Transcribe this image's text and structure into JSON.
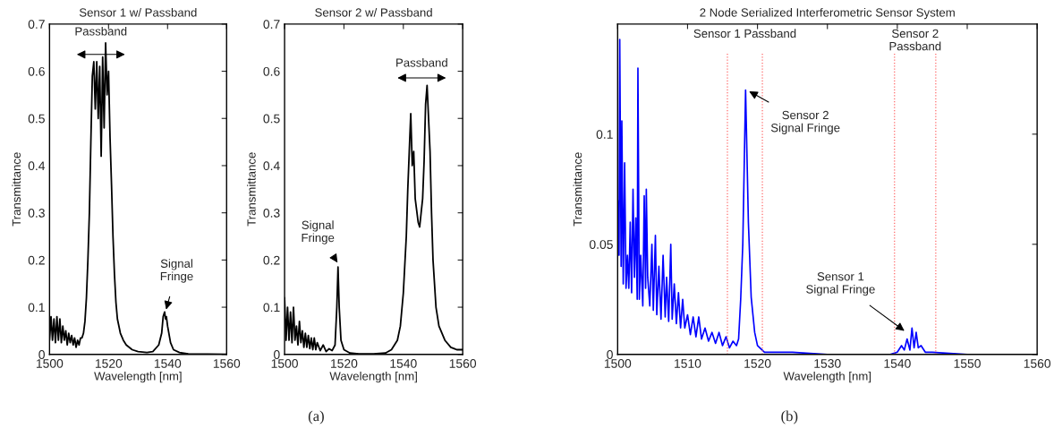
{
  "chart_data": [
    {
      "type": "line",
      "title": "Sensor 1 w/ Passband",
      "xlabel": "Wavelength [nm]",
      "ylabel": "Transmittance",
      "xlim": [
        1500,
        1560
      ],
      "xticks": [
        1500,
        1520,
        1540,
        1560
      ],
      "ylim": [
        0,
        0.7
      ],
      "yticks": [
        0,
        0.1,
        0.2,
        0.3,
        0.4,
        0.5,
        0.6,
        0.7
      ],
      "grid": false,
      "legend": false,
      "series": [
        {
          "color": "#000000",
          "x": [
            1500,
            1500.5,
            1501,
            1501.5,
            1502,
            1502.5,
            1503,
            1503.5,
            1504,
            1504.5,
            1505,
            1505.5,
            1506,
            1506.5,
            1507,
            1507.5,
            1508,
            1508.5,
            1509,
            1509.5,
            1510,
            1510.5,
            1511,
            1511.5,
            1512,
            1512.5,
            1513,
            1513.5,
            1514,
            1514.5,
            1515,
            1515.5,
            1516,
            1516.5,
            1517,
            1517.5,
            1518,
            1518.5,
            1519,
            1519.5,
            1520,
            1520.5,
            1521,
            1521.5,
            1522,
            1522.5,
            1523,
            1524,
            1525,
            1526,
            1528,
            1530,
            1533,
            1535,
            1537,
            1538,
            1538.5,
            1539,
            1539.3,
            1539.6,
            1540,
            1541,
            1542,
            1544,
            1547,
            1560
          ],
          "values": [
            0.03,
            0.08,
            0.03,
            0.075,
            0.025,
            0.08,
            0.03,
            0.075,
            0.025,
            0.06,
            0.03,
            0.05,
            0.02,
            0.045,
            0.025,
            0.04,
            0.02,
            0.035,
            0.015,
            0.03,
            0.02,
            0.035,
            0.035,
            0.045,
            0.07,
            0.12,
            0.2,
            0.3,
            0.45,
            0.59,
            0.62,
            0.52,
            0.62,
            0.5,
            0.61,
            0.42,
            0.63,
            0.48,
            0.66,
            0.55,
            0.6,
            0.46,
            0.36,
            0.25,
            0.17,
            0.11,
            0.075,
            0.045,
            0.03,
            0.02,
            0.01,
            0.006,
            0.004,
            0.006,
            0.02,
            0.045,
            0.08,
            0.09,
            0.075,
            0.08,
            0.06,
            0.025,
            0.01,
            0.004,
            0.001,
            0
          ]
        }
      ],
      "annotations": [
        "Passband",
        {
          "text": "Signal\nFringe",
          "x": 1539.3,
          "y": 0.09
        }
      ]
    },
    {
      "type": "line",
      "title": "Sensor 2 w/ Passband",
      "xlabel": "Wavelength [nm]",
      "ylabel": "Transmittance",
      "xlim": [
        1500,
        1560
      ],
      "xticks": [
        1500,
        1520,
        1540,
        1560
      ],
      "ylim": [
        0,
        0.7
      ],
      "yticks": [
        0,
        0.1,
        0.2,
        0.3,
        0.4,
        0.5,
        0.6,
        0.7
      ],
      "grid": false,
      "legend": false,
      "series": [
        {
          "color": "#000000",
          "x": [
            1500,
            1500.5,
            1501,
            1501.5,
            1502,
            1502.5,
            1503,
            1503.5,
            1504,
            1504.5,
            1505,
            1505.5,
            1506,
            1506.5,
            1507,
            1507.5,
            1508,
            1508.5,
            1509,
            1509.5,
            1510,
            1510.5,
            1511,
            1512,
            1513,
            1514,
            1515,
            1516,
            1517,
            1517.6,
            1518,
            1518.4,
            1519,
            1520,
            1522,
            1525,
            1530,
            1534,
            1536,
            1538,
            1539,
            1540,
            1541,
            1541.5,
            1542,
            1542.5,
            1543,
            1543.5,
            1544,
            1545,
            1545.5,
            1546,
            1546.5,
            1547,
            1547.5,
            1548,
            1548.5,
            1549,
            1549.5,
            1550,
            1551,
            1552,
            1554,
            1556,
            1558,
            1560
          ],
          "values": [
            0.12,
            0.03,
            0.1,
            0.03,
            0.09,
            0.025,
            0.1,
            0.03,
            0.06,
            0.02,
            0.07,
            0.025,
            0.05,
            0.015,
            0.045,
            0.015,
            0.04,
            0.012,
            0.035,
            0.01,
            0.035,
            0.01,
            0.025,
            0.008,
            0.02,
            0.006,
            0.012,
            0.008,
            0.02,
            0.1,
            0.185,
            0.1,
            0.03,
            0.01,
            0.003,
            0.001,
            0.001,
            0.003,
            0.01,
            0.03,
            0.06,
            0.13,
            0.25,
            0.35,
            0.43,
            0.51,
            0.4,
            0.43,
            0.33,
            0.28,
            0.27,
            0.3,
            0.33,
            0.41,
            0.53,
            0.57,
            0.5,
            0.43,
            0.3,
            0.2,
            0.1,
            0.06,
            0.03,
            0.015,
            0.01,
            0.01
          ]
        }
      ],
      "annotations": [
        "Passband",
        {
          "text": "Signal\nFringe",
          "x": 1518.3,
          "y": 0.19
        },
        "(a)"
      ]
    },
    {
      "type": "line",
      "title": "2 Node Serialized Interferometric Sensor System",
      "xlabel": "Wavelength [nm]",
      "ylabel": "Transmittance",
      "xlim": [
        1500,
        1560
      ],
      "xticks": [
        1500,
        1510,
        1520,
        1530,
        1540,
        1550,
        1560
      ],
      "ylim": [
        0,
        0.15
      ],
      "yticks": [
        0,
        0.05,
        0.1
      ],
      "grid": false,
      "legend": false,
      "series": [
        {
          "color": "#0000ff",
          "x": [
            1500,
            1500.2,
            1500.3,
            1500.5,
            1500.6,
            1500.8,
            1501,
            1501.2,
            1501.4,
            1501.6,
            1501.8,
            1502,
            1502.2,
            1502.4,
            1502.6,
            1502.8,
            1502.9,
            1503.1,
            1503.3,
            1503.6,
            1503.8,
            1504,
            1504.1,
            1504.3,
            1504.6,
            1504.9,
            1505.1,
            1505.4,
            1505.6,
            1505.9,
            1506.2,
            1506.5,
            1506.8,
            1507,
            1507.3,
            1507.6,
            1507.8,
            1508.1,
            1508.4,
            1508.7,
            1509,
            1509.3,
            1509.6,
            1510,
            1510.4,
            1510.8,
            1511.2,
            1511.6,
            1512,
            1512.5,
            1513,
            1513.5,
            1514,
            1514.5,
            1515,
            1515.5,
            1516,
            1516.5,
            1517,
            1517.3,
            1517.6,
            1517.9,
            1518.3,
            1518.7,
            1519.1,
            1519.6,
            1520,
            1521,
            1525,
            1530,
            1539,
            1540,
            1540.6,
            1541,
            1541.4,
            1541.8,
            1542.1,
            1542.4,
            1542.7,
            1543,
            1543.4,
            1544,
            1545,
            1550,
            1560
          ],
          "values": [
            0.07,
            0.045,
            0.143,
            0.04,
            0.106,
            0.032,
            0.087,
            0.03,
            0.045,
            0.03,
            0.06,
            0.028,
            0.075,
            0.035,
            0.062,
            0.025,
            0.13,
            0.025,
            0.045,
            0.022,
            0.072,
            0.03,
            0.075,
            0.035,
            0.022,
            0.05,
            0.02,
            0.054,
            0.018,
            0.04,
            0.016,
            0.045,
            0.017,
            0.035,
            0.015,
            0.05,
            0.016,
            0.032,
            0.014,
            0.028,
            0.012,
            0.025,
            0.012,
            0.018,
            0.009,
            0.017,
            0.008,
            0.017,
            0.007,
            0.012,
            0.006,
            0.01,
            0.005,
            0.01,
            0.004,
            0.008,
            0.003,
            0.006,
            0.004,
            0.007,
            0.025,
            0.05,
            0.12,
            0.06,
            0.026,
            0.01,
            0.004,
            0.001,
            0.001,
            0,
            0,
            0.001,
            0.004,
            0.002,
            0.007,
            0.002,
            0.012,
            0.003,
            0.01,
            0.003,
            0.004,
            0.001,
            0.001,
            0,
            0
          ]
        }
      ],
      "ref_lines": [
        {
          "axis": "x",
          "value": 1515.7,
          "label": "Sensor 1 Passband",
          "color": "#ff6666",
          "line_style": "dotted"
        },
        {
          "axis": "x",
          "value": 1520.7,
          "color": "#ff6666",
          "line_style": "dotted"
        },
        {
          "axis": "x",
          "value": 1539.6,
          "label": "Sensor 2\nPassband",
          "color": "#ff6666",
          "line_style": "dotted"
        },
        {
          "axis": "x",
          "value": 1545.5,
          "color": "#ff6666",
          "line_style": "dotted"
        }
      ],
      "annotations": [
        {
          "text": "Sensor 2\nSignal Fringe",
          "x": 1518.5,
          "y": 0.12
        },
        {
          "text": "Sensor 1\nSignal Fringe",
          "x": 1541.3,
          "y": 0.01
        },
        "(b)"
      ]
    }
  ]
}
